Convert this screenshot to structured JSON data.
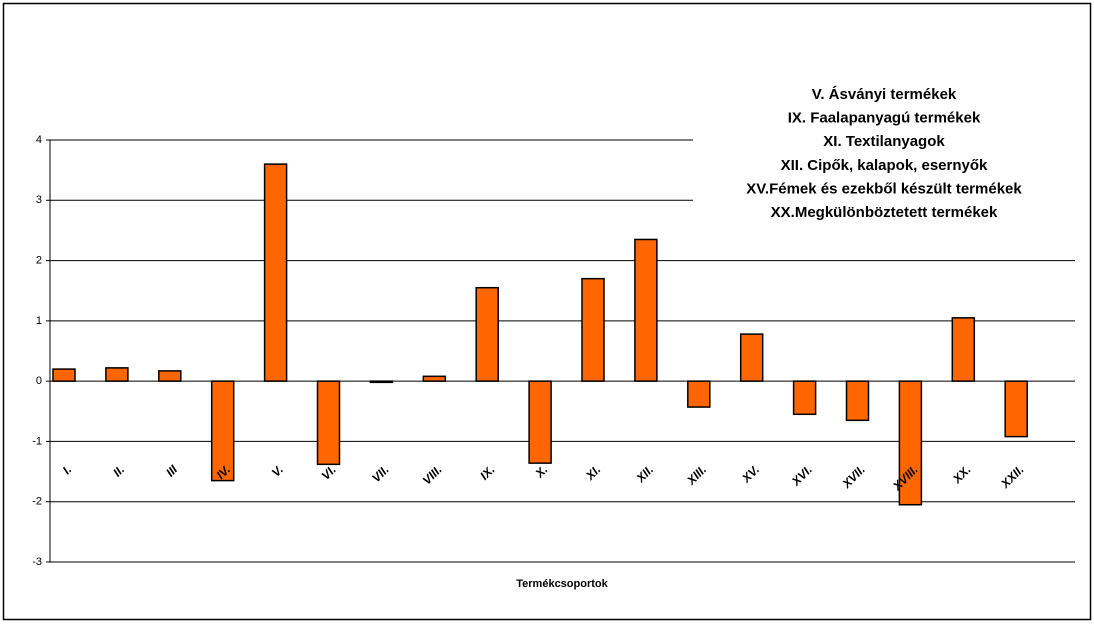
{
  "chart_data": {
    "type": "bar",
    "x_label": "Termékcsoportok",
    "annotations": [
      "V. Ásványi termékek",
      "IX. Faalapanyagú termékek",
      "XI. Textilanyagok",
      "XII. Cipők, kalapok, esernyők",
      "XV.Fémek és ezekből készült termékek",
      "XX.Megkülönböztetett termékek"
    ],
    "categories": [
      "I.",
      "II.",
      "III",
      "IV.",
      "V.",
      "VI.",
      "VII.",
      "VIII.",
      "IX.",
      "X.",
      "XI.",
      "XII.",
      "XIII.",
      "XV.",
      "XVI.",
      "XVII.",
      "XVIII.",
      "XX.",
      "XXII."
    ],
    "values": [
      0.2,
      0.22,
      0.17,
      -1.65,
      3.6,
      -1.38,
      -0.02,
      0.08,
      1.55,
      -1.36,
      1.7,
      2.35,
      -0.43,
      0.78,
      -0.55,
      -0.65,
      -2.05,
      1.05,
      -0.92
    ],
    "color": "#ff6600",
    "ylim": [
      -3,
      4
    ],
    "yticks": [
      -3,
      -2,
      -1,
      0,
      1,
      2,
      3,
      4
    ],
    "grid": true
  }
}
